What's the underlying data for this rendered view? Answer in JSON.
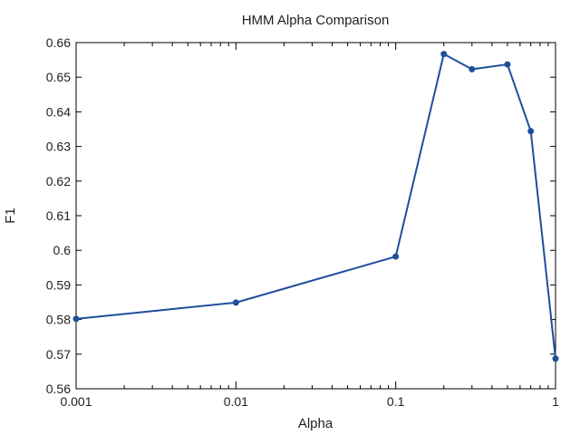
{
  "chart_data": {
    "type": "line",
    "title": "HMM Alpha Comparison",
    "xlabel": "Alpha",
    "ylabel": "F1",
    "xscale": "log",
    "xlim": [
      0.001,
      1
    ],
    "ylim": [
      0.56,
      0.66
    ],
    "grid": false,
    "legend": "none",
    "x_ticks": [
      "0.001",
      "0.01",
      "0.1",
      "1"
    ],
    "y_ticks": [
      "0.56",
      "0.57",
      "0.58",
      "0.59",
      "0.6",
      "0.61",
      "0.62",
      "0.63",
      "0.64",
      "0.65",
      "0.66"
    ],
    "series": [
      {
        "color": "#1f4e9c",
        "x": [
          0.001,
          0.01,
          0.1,
          0.2,
          0.3,
          0.5,
          0.7,
          1.0
        ],
        "y": [
          0.5802,
          0.5849,
          0.5982,
          0.6567,
          0.6523,
          0.6537,
          0.6344,
          0.5687
        ]
      }
    ]
  }
}
